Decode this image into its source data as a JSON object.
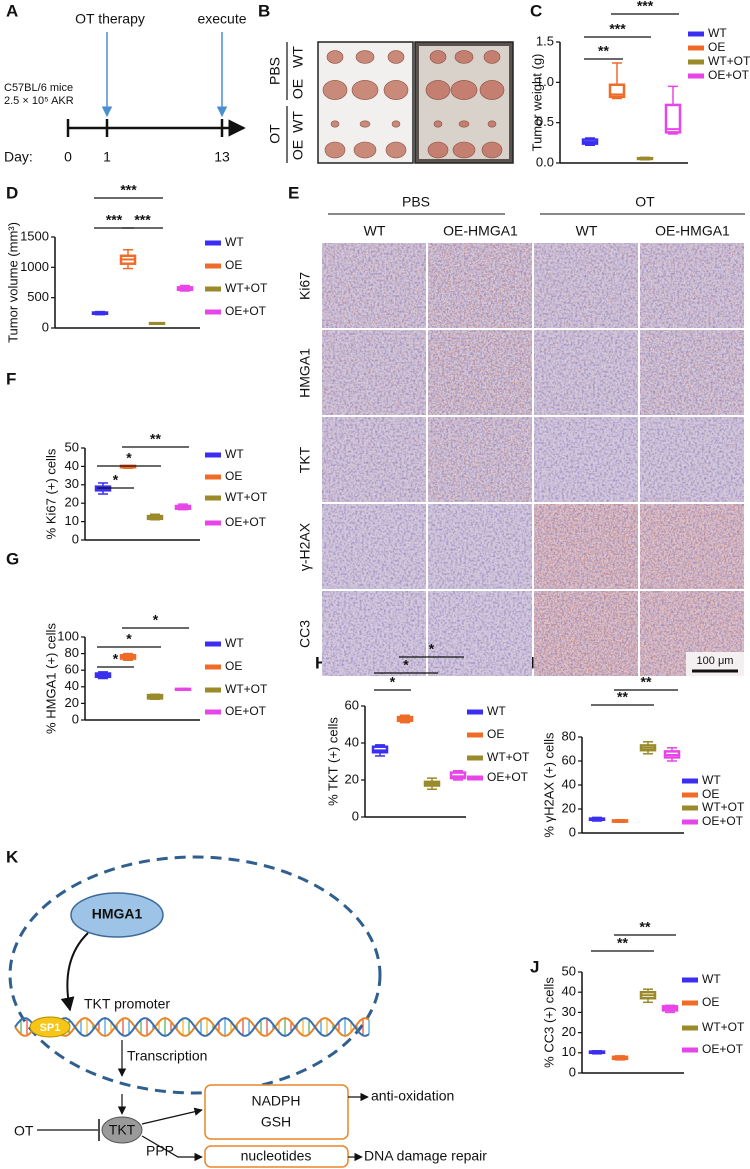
{
  "panels": [
    "A",
    "B",
    "C",
    "D",
    "E",
    "F",
    "G",
    "H",
    "I",
    "J",
    "K"
  ],
  "timeline": {
    "event_labels": [
      "OT therapy",
      "execute"
    ],
    "mice": "C57BL/6 mice",
    "cells": "2.5 × 10⁵ AKR",
    "day_label": "Day:",
    "days": [
      0,
      1,
      13
    ]
  },
  "photo": {
    "groups": [
      "PBS",
      "OT"
    ],
    "rows": [
      "WT",
      "OE",
      "WT",
      "OE"
    ]
  },
  "histology": {
    "treatments": [
      "PBS",
      "OT"
    ],
    "columns": [
      "WT",
      "OE-HMGA1",
      "WT",
      "OE-HMGA1"
    ],
    "rows": [
      "Ki67",
      "HMGA1",
      "TKT",
      "γ-H2AX",
      "CC3"
    ],
    "scale_bar": "100 μm"
  },
  "chart_data": [
    {
      "type": "box",
      "ylabel": "Tumor weight (g)",
      "categories": [
        "WT",
        "OE",
        "WT+OT",
        "OE+OT"
      ],
      "colors": [
        "#3a2ff0",
        "#f06a28",
        "#9a8a2a",
        "#e845e8"
      ],
      "boxes": [
        {
          "min": 0.22,
          "q1": 0.24,
          "median": 0.26,
          "q3": 0.29,
          "max": 0.31
        },
        {
          "min": 0.8,
          "q1": 0.82,
          "median": 0.85,
          "q3": 0.97,
          "max": 1.24
        },
        {
          "min": 0.04,
          "q1": 0.05,
          "median": 0.05,
          "q3": 0.06,
          "max": 0.07
        },
        {
          "min": 0.36,
          "q1": 0.38,
          "median": 0.42,
          "q3": 0.72,
          "max": 0.95
        }
      ],
      "ylim": [
        0,
        1.5
      ],
      "yticks": [
        {
          "value": 0,
          "label": "0.0"
        },
        0.5,
        {
          "value": 1,
          "label": "1.0"
        },
        1.5
      ],
      "significance": [
        {
          "from": 0,
          "to": 1,
          "label": "**"
        },
        {
          "from": 0,
          "to": 2,
          "label": "***"
        },
        {
          "from": 1,
          "to": 3,
          "label": "***"
        }
      ]
    },
    {
      "type": "box",
      "ylabel": "Tumor volume (mm³)",
      "categories": [
        "WT",
        "OE",
        "WT+OT",
        "OE+OT"
      ],
      "colors": [
        "#3a2ff0",
        "#f06a28",
        "#9a8a2a",
        "#e845e8"
      ],
      "boxes": [
        {
          "min": 220,
          "q1": 235,
          "median": 245,
          "q3": 255,
          "max": 270
        },
        {
          "min": 980,
          "q1": 1060,
          "median": 1130,
          "q3": 1190,
          "max": 1290
        },
        {
          "min": 65,
          "q1": 70,
          "median": 75,
          "q3": 80,
          "max": 85
        },
        {
          "min": 610,
          "q1": 630,
          "median": 650,
          "q3": 670,
          "max": 700
        }
      ],
      "ylim": [
        0,
        1500
      ],
      "yticks": [
        0,
        500,
        1000,
        1500
      ],
      "significance": [
        {
          "from": 0,
          "to": 2,
          "label": "***"
        },
        {
          "from": 0,
          "to": 1,
          "label": "***"
        },
        {
          "from": 1,
          "to": 2,
          "label": "***"
        }
      ]
    },
    {
      "type": "box",
      "ylabel": "% Ki67 (+) cells",
      "categories": [
        "WT",
        "OE",
        "WT+OT",
        "OE+OT"
      ],
      "colors": [
        "#3a2ff0",
        "#f06a28",
        "#9a8a2a",
        "#e845e8"
      ],
      "boxes": [
        {
          "min": 25,
          "q1": 27,
          "median": 28,
          "q3": 29,
          "max": 31
        },
        {
          "min": 39,
          "q1": 39.5,
          "median": 40,
          "q3": 40.3,
          "max": 40.5
        },
        {
          "min": 11,
          "q1": 11.5,
          "median": 12,
          "q3": 13,
          "max": 14
        },
        {
          "min": 16.5,
          "q1": 17,
          "median": 18,
          "q3": 18.5,
          "max": 19.5
        }
      ],
      "ylim": [
        0,
        50
      ],
      "yticks": [
        0,
        10,
        20,
        30,
        40,
        50
      ],
      "significance": [
        {
          "from": 0,
          "to": 1,
          "label": "*"
        },
        {
          "from": 0,
          "to": 2,
          "label": "*"
        },
        {
          "from": 1,
          "to": 3,
          "label": "**"
        }
      ]
    },
    {
      "type": "box",
      "ylabel": "% HMGA1 (+) cells",
      "categories": [
        "WT",
        "OE",
        "WT+OT",
        "OE+OT"
      ],
      "colors": [
        "#3a2ff0",
        "#f06a28",
        "#9a8a2a",
        "#e845e8"
      ],
      "boxes": [
        {
          "min": 50,
          "q1": 52,
          "median": 54,
          "q3": 56,
          "max": 58
        },
        {
          "min": 72,
          "q1": 74,
          "median": 76,
          "q3": 78,
          "max": 80
        },
        {
          "min": 25,
          "q1": 26,
          "median": 28,
          "q3": 30,
          "max": 31
        },
        {
          "min": 36,
          "q1": 36.5,
          "median": 37,
          "q3": 37.5,
          "max": 38
        }
      ],
      "ylim": [
        0,
        100
      ],
      "yticks": [
        0,
        20,
        40,
        60,
        80,
        100
      ],
      "significance": [
        {
          "from": 0,
          "to": 1,
          "label": "*"
        },
        {
          "from": 0,
          "to": 2,
          "label": "*"
        },
        {
          "from": 1,
          "to": 3,
          "label": "*"
        }
      ]
    },
    {
      "type": "box",
      "ylabel": "% TKT (+) cells",
      "categories": [
        "WT",
        "OE",
        "WT+OT",
        "OE+OT"
      ],
      "colors": [
        "#3a2ff0",
        "#f06a28",
        "#9a8a2a",
        "#e845e8"
      ],
      "boxes": [
        {
          "min": 33,
          "q1": 35,
          "median": 36,
          "q3": 38,
          "max": 39
        },
        {
          "min": 51,
          "q1": 52,
          "median": 53,
          "q3": 54,
          "max": 55
        },
        {
          "min": 15,
          "q1": 17,
          "median": 18,
          "q3": 19,
          "max": 21
        },
        {
          "min": 20,
          "q1": 21,
          "median": 22,
          "q3": 24,
          "max": 25
        }
      ],
      "ylim": [
        0,
        60
      ],
      "yticks": [
        0,
        20,
        40,
        60
      ],
      "significance": [
        {
          "from": 0,
          "to": 1,
          "label": "*"
        },
        {
          "from": 0,
          "to": 2,
          "label": "*"
        },
        {
          "from": 1,
          "to": 3,
          "label": "*"
        }
      ]
    },
    {
      "type": "box",
      "ylabel": "% γH2AX (+) cells",
      "categories": [
        "WT",
        "OE",
        "WT+OT",
        "OE+OT"
      ],
      "colors": [
        "#3a2ff0",
        "#f06a28",
        "#9a8a2a",
        "#e845e8"
      ],
      "boxes": [
        {
          "min": 10,
          "q1": 11,
          "median": 11.5,
          "q3": 12,
          "max": 13
        },
        {
          "min": 9,
          "q1": 9.5,
          "median": 10,
          "q3": 10.5,
          "max": 11
        },
        {
          "min": 66,
          "q1": 69,
          "median": 71,
          "q3": 73,
          "max": 76
        },
        {
          "min": 60,
          "q1": 63,
          "median": 65,
          "q3": 68,
          "max": 71
        }
      ],
      "ylim": [
        0,
        80
      ],
      "yticks": [
        0,
        20,
        40,
        60,
        80
      ],
      "significance": [
        {
          "from": 0,
          "to": 2,
          "label": "**"
        },
        {
          "from": 1,
          "to": 3,
          "label": "**"
        }
      ]
    },
    {
      "type": "box",
      "ylabel": "% CC3 (+) cells",
      "categories": [
        "WT",
        "OE",
        "WT+OT",
        "OE+OT"
      ],
      "colors": [
        "#3a2ff0",
        "#f06a28",
        "#9a8a2a",
        "#e845e8"
      ],
      "boxes": [
        {
          "min": 9.5,
          "q1": 10,
          "median": 10.3,
          "q3": 10.6,
          "max": 11
        },
        {
          "min": 6.5,
          "q1": 7,
          "median": 7.5,
          "q3": 8,
          "max": 8.5
        },
        {
          "min": 35,
          "q1": 37,
          "median": 38.5,
          "q3": 40,
          "max": 41.5
        },
        {
          "min": 30,
          "q1": 31,
          "median": 32,
          "q3": 33,
          "max": 33.5
        }
      ],
      "ylim": [
        0,
        50
      ],
      "yticks": [
        0,
        10,
        20,
        30,
        40,
        50
      ],
      "significance": [
        {
          "from": 0,
          "to": 2,
          "label": "**"
        },
        {
          "from": 1,
          "to": 3,
          "label": "**"
        }
      ]
    }
  ],
  "diagram": {
    "hmga1": "HMGA1",
    "promoter": "TKT promoter",
    "sp1": "SP1",
    "transcription": "Transcription",
    "drug": "OT",
    "tkt": "TKT",
    "pathway": "PPP",
    "products": [
      "NADPH",
      "GSH"
    ],
    "nucleotides": "nucleotides",
    "outcomes": [
      "anti-oxidation",
      "DNA damage repair"
    ]
  }
}
